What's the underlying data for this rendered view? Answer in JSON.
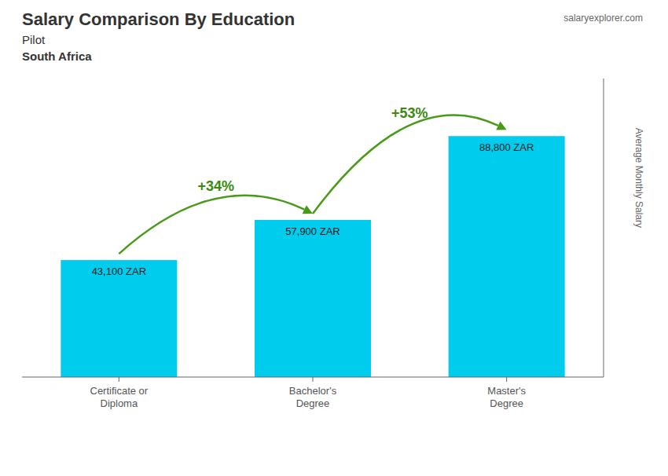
{
  "chart_data": {
    "type": "bar",
    "title": "Salary Comparison By Education",
    "subtitle": [
      "Pilot",
      "South Africa"
    ],
    "ylabel": "Average Monthly Salary",
    "categories": [
      "Certificate or\nDiploma",
      "Bachelor's\nDegree",
      "Master's\nDegree"
    ],
    "values": [
      43100,
      57900,
      88800
    ],
    "value_labels": [
      "43,100 ZAR",
      "57,900 ZAR",
      "88,800 ZAR"
    ],
    "data_labels": true,
    "color": "#00CCEE",
    "ylim": [
      0,
      110000
    ],
    "tick_labels": "x",
    "grid": false,
    "annotations": [
      {
        "text": "+34%",
        "from": 0,
        "to": 1
      },
      {
        "text": "+53%",
        "from": 1,
        "to": 2
      },
      {
        "text": "salaryexplorer.com"
      }
    ]
  }
}
